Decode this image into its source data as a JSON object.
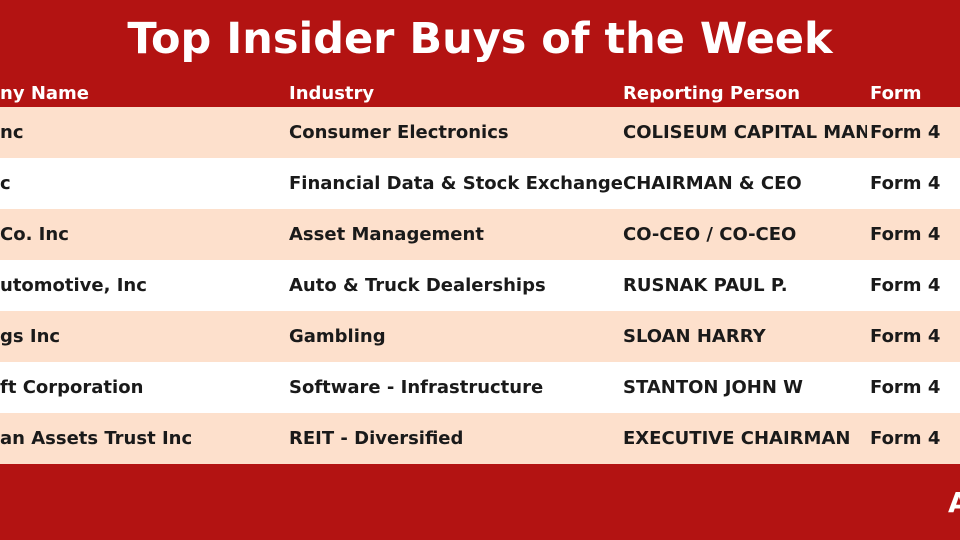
{
  "header": {
    "title": "Top Insider Buys of the Week"
  },
  "table": {
    "columns": [
      "ny Name",
      "Industry",
      "Reporting Person",
      "Form"
    ],
    "rows": [
      [
        "nc",
        "Consumer Electronics",
        "COLISEUM CAPITAL MAN",
        "Form 4"
      ],
      [
        "c",
        "Financial Data & Stock Exchanges",
        "CHAIRMAN & CEO",
        "Form 4"
      ],
      [
        "Co. Inc",
        "Asset Management",
        "CO-CEO / CO-CEO",
        "Form 4"
      ],
      [
        "utomotive, Inc",
        "Auto & Truck Dealerships",
        "RUSNAK PAUL P.",
        "Form 4"
      ],
      [
        "gs Inc",
        "Gambling",
        "SLOAN HARRY",
        "Form 4"
      ],
      [
        "ft Corporation",
        "Software - Infrastructure",
        "STANTON JOHN W",
        "Form 4"
      ],
      [
        "an Assets Trust Inc",
        "REIT - Diversified",
        "EXECUTIVE CHAIRMAN",
        "Form 4"
      ]
    ]
  },
  "footer": {
    "mark": "A"
  }
}
